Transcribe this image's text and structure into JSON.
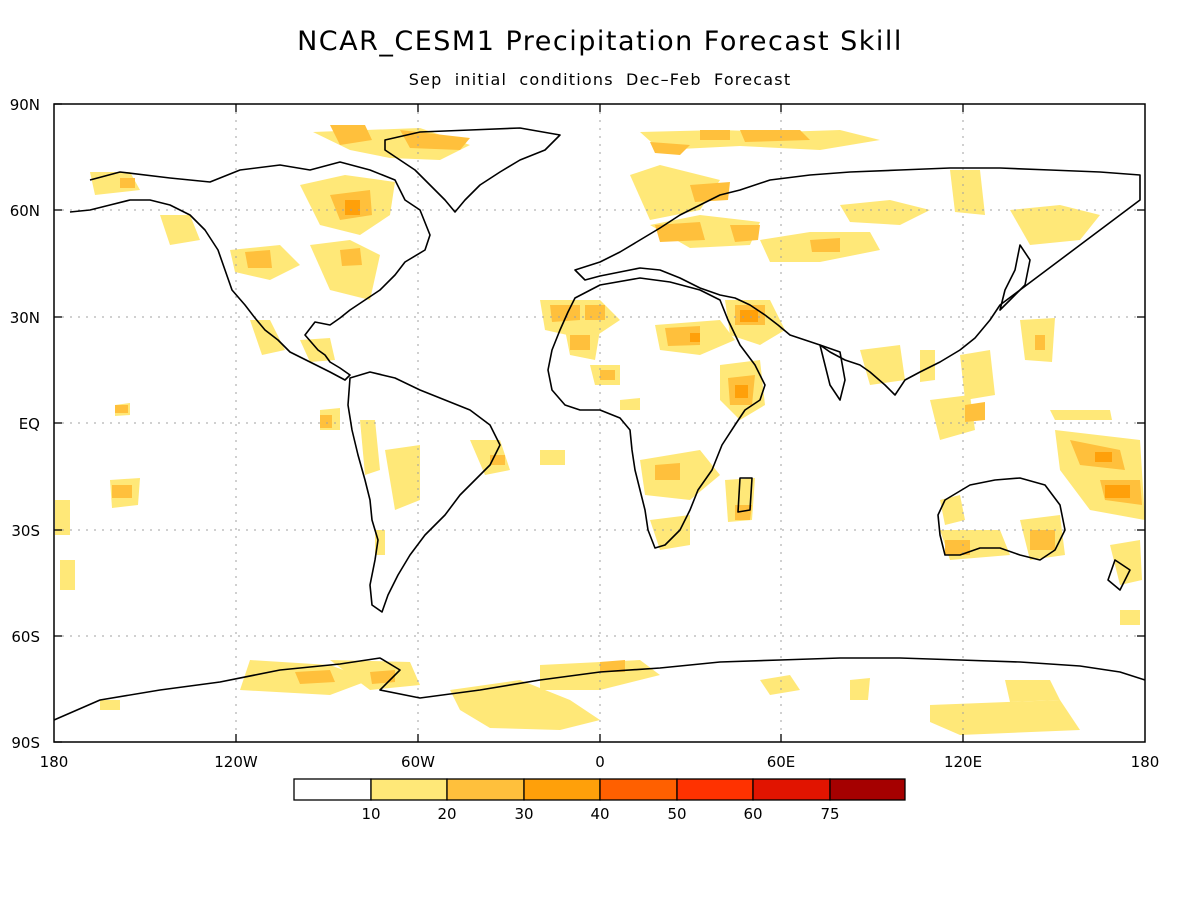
{
  "title": "NCAR_CESM1 Precipitation Forecast Skill",
  "subtitle": "Sep initial conditions  Dec–Feb Forecast",
  "lat_labels": [
    "90N",
    "60N",
    "30N",
    "EQ",
    "30S",
    "60S",
    "90S"
  ],
  "lon_labels": [
    "180",
    "120W",
    "60W",
    "0",
    "60E",
    "120E",
    "180"
  ],
  "colorbar": {
    "colors": [
      "#ffffff",
      "#ffe878",
      "#ffc03c",
      "#ffa00a",
      "#ff6000",
      "#ff3200",
      "#e11400",
      "#a50000"
    ],
    "labels": [
      "10",
      "20",
      "30",
      "40",
      "50",
      "60",
      "75"
    ]
  },
  "colors": {
    "land_outline": "#000000",
    "grid": "#a0a0a0"
  }
}
